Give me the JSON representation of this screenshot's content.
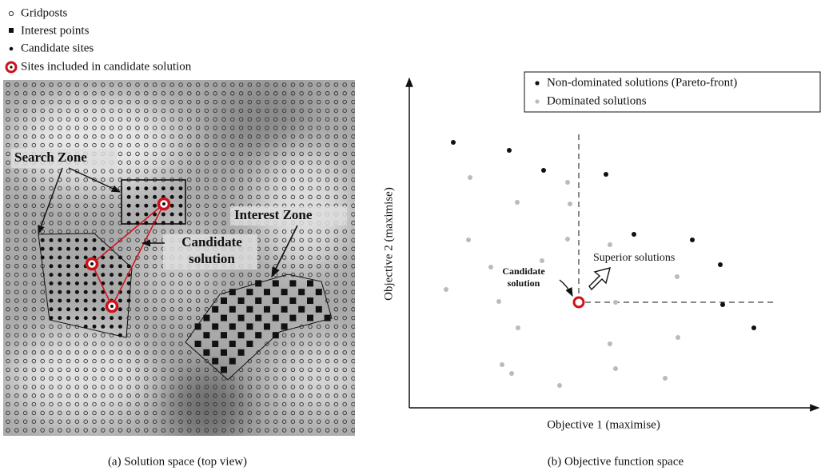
{
  "panel_a": {
    "legend": [
      "Gridposts",
      "Interest points",
      "Candidate sites",
      "Sites included in candidate solution"
    ],
    "labels": {
      "search_zone": "Search Zone",
      "candidate_solution": [
        "Candidate",
        "solution"
      ],
      "interest_zone": "Interest Zone"
    },
    "caption": "(a) Solution space (top view)"
  },
  "panel_b": {
    "legend": [
      "Non-dominated solutions (Pareto-front)",
      "Dominated solutions"
    ],
    "superior": "Superior solutions",
    "candidate_solution": [
      "Candidate",
      "solution"
    ],
    "x_label": "Objective 1 (maximise)",
    "y_label": "Objective 2 (maximise)",
    "caption": "(b) Objective function space"
  }
}
